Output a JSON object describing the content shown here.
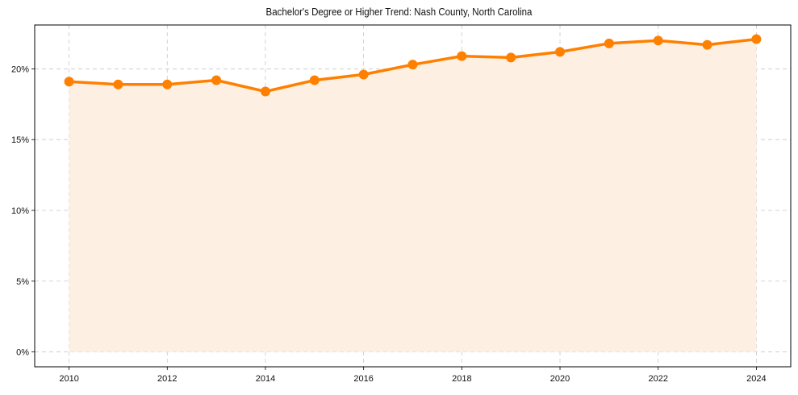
{
  "chart_data": {
    "type": "line",
    "title": "Bachelor's Degree or Higher Trend: Nash County, North Carolina",
    "xlabel": "",
    "ylabel": "",
    "x": [
      2010,
      2011,
      2012,
      2013,
      2014,
      2015,
      2016,
      2017,
      2018,
      2019,
      2020,
      2021,
      2022,
      2023,
      2024
    ],
    "series": [
      {
        "name": "Bachelor's Degree or Higher",
        "values": [
          19.1,
          18.9,
          18.9,
          19.2,
          18.4,
          19.2,
          19.6,
          20.3,
          20.9,
          20.8,
          21.2,
          21.8,
          22.0,
          21.7,
          22.1
        ],
        "color": "#ff8000",
        "fill": "#fdf0e3",
        "marker": "circle"
      }
    ],
    "xticks": [
      2010,
      2012,
      2014,
      2016,
      2018,
      2020,
      2022,
      2024
    ],
    "yticks": [
      0,
      5,
      10,
      15,
      20
    ],
    "ytick_labels": [
      "0%",
      "5%",
      "10%",
      "15%",
      "20%"
    ],
    "xlim": [
      2009.3,
      2024.7
    ],
    "ylim": [
      -1.05,
      23.1
    ],
    "grid": true,
    "legend": null
  }
}
